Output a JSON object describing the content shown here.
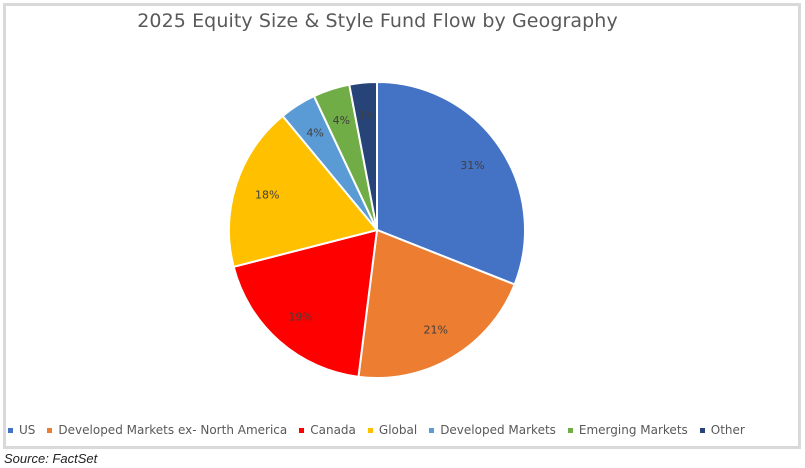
{
  "chart_data": {
    "type": "pie",
    "title": "2025 Equity Size & Style Fund Flow by Geography",
    "categories": [
      "US",
      "Developed Markets ex- North America",
      "Canada",
      "Global",
      "Developed Markets",
      "Emerging Markets",
      "Other"
    ],
    "values": [
      31,
      21,
      19,
      18,
      4,
      4,
      3
    ],
    "labels": [
      "31%",
      "21%",
      "19%",
      "18%",
      "4%",
      "4%",
      "3%"
    ],
    "colors": [
      "#4472c4",
      "#ed7d31",
      "#ff0000",
      "#ffc000",
      "#5b9bd5",
      "#70ad47",
      "#264478"
    ],
    "start_angle_deg": 0,
    "direction": "clockwise",
    "legend_position": "bottom",
    "unit": "%"
  },
  "legend": {
    "items": [
      {
        "label": "US",
        "color": "#4472c4"
      },
      {
        "label": "Developed Markets ex- North America",
        "color": "#ed7d31"
      },
      {
        "label": "Canada",
        "color": "#ff0000"
      },
      {
        "label": "Global",
        "color": "#ffc000"
      },
      {
        "label": "Developed Markets",
        "color": "#5b9bd5"
      },
      {
        "label": "Emerging Markets",
        "color": "#70ad47"
      },
      {
        "label": "Other",
        "color": "#264478"
      }
    ]
  },
  "source": "Source: FactSet"
}
